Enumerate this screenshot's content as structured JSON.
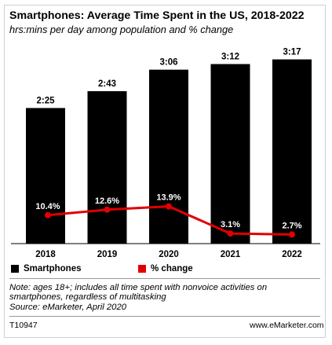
{
  "chart_data": {
    "type": "bar",
    "title": "Smartphones: Average Time Spent in the US, 2018-2022",
    "subtitle": "hrs:mins per day among population and % change",
    "categories": [
      "2018",
      "2019",
      "2020",
      "2021",
      "2022"
    ],
    "series": [
      {
        "name": "Smartphones",
        "type": "bar",
        "color": "#000000",
        "values_minutes": [
          145,
          163,
          186,
          192,
          197
        ],
        "labels": [
          "2:25",
          "2:43",
          "3:06",
          "3:12",
          "3:17"
        ]
      },
      {
        "name": "% change",
        "type": "line",
        "color": "#e00000",
        "values": [
          10.4,
          12.6,
          13.9,
          3.1,
          2.7
        ],
        "labels": [
          "10.4%",
          "12.6%",
          "13.9%",
          "3.1%",
          "2.7%"
        ]
      }
    ],
    "grid": false,
    "legend": "bottom-left"
  },
  "note": "Note: ages 18+; includes all time spent with nonvoice activities on smartphones, regardless of multitasking",
  "source": "Source: eMarketer, April 2020",
  "footer": {
    "id": "T10947",
    "brand": "www.eMarketer.com"
  }
}
